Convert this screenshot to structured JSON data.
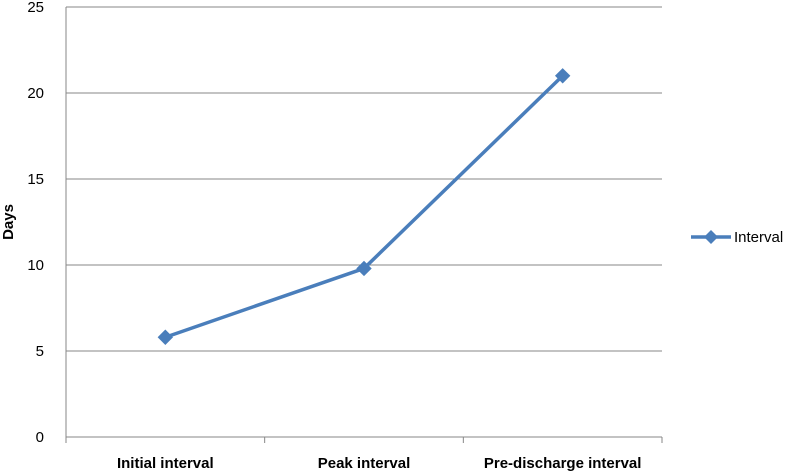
{
  "chart_data": {
    "type": "line",
    "categories": [
      "Initial interval",
      "Peak interval",
      "Pre-discharge interval"
    ],
    "series": [
      {
        "name": "Interval",
        "values": [
          5.8,
          9.8,
          21.0
        ],
        "color": "#4a7ebb",
        "marker": "diamond"
      }
    ],
    "xlabel": "",
    "ylabel": "Days",
    "ylim": [
      0,
      25
    ],
    "yticks": [
      0,
      5,
      10,
      15,
      20,
      25
    ],
    "grid": true,
    "legend_position": "right"
  }
}
